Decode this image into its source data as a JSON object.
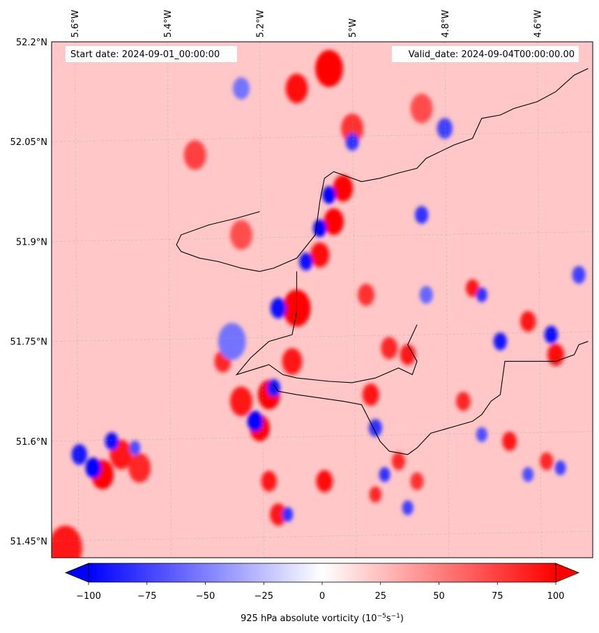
{
  "chart_data": {
    "type": "heatmap",
    "title": "",
    "map": {
      "lon_range": [
        -5.65,
        -4.48
      ],
      "lat_range": [
        51.425,
        52.2
      ],
      "lon_ticks": [
        {
          "value": -5.6,
          "label": "5.6°W"
        },
        {
          "value": -5.4,
          "label": "5.4°W"
        },
        {
          "value": -5.2,
          "label": "5.2°W"
        },
        {
          "value": -5.0,
          "label": "5°W"
        },
        {
          "value": -4.8,
          "label": "4.8°W"
        },
        {
          "value": -4.6,
          "label": "4.6°W"
        }
      ],
      "lat_ticks": [
        {
          "value": 52.2,
          "label": "52.2°N"
        },
        {
          "value": 52.05,
          "label": "52.05°N"
        },
        {
          "value": 51.9,
          "label": "51.9°N"
        },
        {
          "value": 51.75,
          "label": "51.75°N"
        },
        {
          "value": 51.6,
          "label": "51.6°N"
        },
        {
          "value": 51.45,
          "label": "51.45°N"
        }
      ],
      "gridlines": true,
      "coastlines": true
    },
    "info": {
      "start_date": "Start date: 2024-09-01_00:00:00",
      "valid_date": "Valid_date: 2024-09-04T00:00:00.00"
    },
    "colorbar": {
      "label_main": "925 hPa absolute vorticity (10",
      "exp1": "−5",
      "mid": "s",
      "exp2": "−1",
      "close": ")",
      "range": [
        -100,
        100
      ],
      "extend": "both",
      "ticks": [
        {
          "value": -100,
          "label": "−100"
        },
        {
          "value": -75,
          "label": "−75"
        },
        {
          "value": -50,
          "label": "−50"
        },
        {
          "value": -25,
          "label": "−25"
        },
        {
          "value": 0,
          "label": "0"
        },
        {
          "value": 25,
          "label": "25"
        },
        {
          "value": 50,
          "label": "50"
        },
        {
          "value": 75,
          "label": "75"
        },
        {
          "value": 100,
          "label": "100"
        }
      ],
      "colors": {
        "min": "#0000ff",
        "mid": "#ffffff",
        "max": "#ff0000"
      }
    },
    "features": {
      "background_vorticity": 22,
      "positive": [
        {
          "lon": -5.02,
          "lat": 51.98,
          "value": 100,
          "r": 0.018
        },
        {
          "lon": -5.04,
          "lat": 51.93,
          "value": 100,
          "r": 0.018
        },
        {
          "lon": -5.07,
          "lat": 51.88,
          "value": 95,
          "r": 0.017
        },
        {
          "lon": -5.12,
          "lat": 51.8,
          "value": 100,
          "r": 0.025
        },
        {
          "lon": -5.18,
          "lat": 51.67,
          "value": 100,
          "r": 0.02
        },
        {
          "lon": -5.2,
          "lat": 51.62,
          "value": 100,
          "r": 0.018
        },
        {
          "lon": -5.24,
          "lat": 51.66,
          "value": 90,
          "r": 0.02
        },
        {
          "lon": -5.13,
          "lat": 51.72,
          "value": 90,
          "r": 0.018
        },
        {
          "lon": -4.97,
          "lat": 51.82,
          "value": 80,
          "r": 0.015
        },
        {
          "lon": -4.92,
          "lat": 51.74,
          "value": 85,
          "r": 0.015
        },
        {
          "lon": -4.88,
          "lat": 51.73,
          "value": 90,
          "r": 0.014
        },
        {
          "lon": -4.96,
          "lat": 51.67,
          "value": 90,
          "r": 0.015
        },
        {
          "lon": -5.06,
          "lat": 51.54,
          "value": 95,
          "r": 0.015
        },
        {
          "lon": -5.16,
          "lat": 51.49,
          "value": 90,
          "r": 0.015
        },
        {
          "lon": -5.18,
          "lat": 51.54,
          "value": 90,
          "r": 0.014
        },
        {
          "lon": -5.54,
          "lat": 51.55,
          "value": 100,
          "r": 0.02
        },
        {
          "lon": -5.5,
          "lat": 51.58,
          "value": 90,
          "r": 0.02
        },
        {
          "lon": -5.46,
          "lat": 51.56,
          "value": 85,
          "r": 0.02
        },
        {
          "lon": -5.62,
          "lat": 51.44,
          "value": 90,
          "r": 0.03
        },
        {
          "lon": -5.05,
          "lat": 52.16,
          "value": 100,
          "r": 0.025
        },
        {
          "lon": -5.12,
          "lat": 52.13,
          "value": 95,
          "r": 0.02
        },
        {
          "lon": -5.0,
          "lat": 52.07,
          "value": 80,
          "r": 0.02
        },
        {
          "lon": -4.85,
          "lat": 52.1,
          "value": 70,
          "r": 0.02
        },
        {
          "lon": -4.74,
          "lat": 51.83,
          "value": 90,
          "r": 0.012
        },
        {
          "lon": -4.62,
          "lat": 51.78,
          "value": 90,
          "r": 0.014
        },
        {
          "lon": -4.56,
          "lat": 51.73,
          "value": 95,
          "r": 0.015
        },
        {
          "lon": -4.76,
          "lat": 51.66,
          "value": 85,
          "r": 0.013
        },
        {
          "lon": -4.66,
          "lat": 51.6,
          "value": 90,
          "r": 0.013
        },
        {
          "lon": -4.58,
          "lat": 51.57,
          "value": 85,
          "r": 0.012
        },
        {
          "lon": -4.9,
          "lat": 51.57,
          "value": 85,
          "r": 0.012
        },
        {
          "lon": -4.86,
          "lat": 51.54,
          "value": 80,
          "r": 0.012
        },
        {
          "lon": -4.95,
          "lat": 51.52,
          "value": 85,
          "r": 0.011
        },
        {
          "lon": -5.34,
          "lat": 52.03,
          "value": 75,
          "r": 0.02
        },
        {
          "lon": -5.24,
          "lat": 51.91,
          "value": 70,
          "r": 0.02
        },
        {
          "lon": -5.28,
          "lat": 51.72,
          "value": 85,
          "r": 0.015
        }
      ],
      "negative": [
        {
          "lon": -5.05,
          "lat": 51.97,
          "value": -100,
          "r": 0.012
        },
        {
          "lon": -5.07,
          "lat": 51.92,
          "value": -100,
          "r": 0.012
        },
        {
          "lon": -5.1,
          "lat": 51.87,
          "value": -95,
          "r": 0.012
        },
        {
          "lon": -5.16,
          "lat": 51.8,
          "value": -95,
          "r": 0.014
        },
        {
          "lon": -5.21,
          "lat": 51.63,
          "value": -100,
          "r": 0.014
        },
        {
          "lon": -5.17,
          "lat": 51.68,
          "value": -90,
          "r": 0.012
        },
        {
          "lon": -5.56,
          "lat": 51.56,
          "value": -100,
          "r": 0.014
        },
        {
          "lon": -5.59,
          "lat": 51.58,
          "value": -90,
          "r": 0.014
        },
        {
          "lon": -5.52,
          "lat": 51.6,
          "value": -95,
          "r": 0.012
        },
        {
          "lon": -5.47,
          "lat": 51.59,
          "value": -70,
          "r": 0.01
        },
        {
          "lon": -5.0,
          "lat": 52.05,
          "value": -80,
          "r": 0.012
        },
        {
          "lon": -4.8,
          "lat": 52.07,
          "value": -75,
          "r": 0.014
        },
        {
          "lon": -4.85,
          "lat": 51.94,
          "value": -80,
          "r": 0.012
        },
        {
          "lon": -4.68,
          "lat": 51.75,
          "value": -90,
          "r": 0.012
        },
        {
          "lon": -4.57,
          "lat": 51.76,
          "value": -95,
          "r": 0.012
        },
        {
          "lon": -4.72,
          "lat": 51.82,
          "value": -80,
          "r": 0.01
        },
        {
          "lon": -4.51,
          "lat": 51.85,
          "value": -75,
          "r": 0.012
        },
        {
          "lon": -4.95,
          "lat": 51.62,
          "value": -80,
          "r": 0.012
        },
        {
          "lon": -4.93,
          "lat": 51.55,
          "value": -80,
          "r": 0.01
        },
        {
          "lon": -4.88,
          "lat": 51.5,
          "value": -75,
          "r": 0.01
        },
        {
          "lon": -5.26,
          "lat": 51.75,
          "value": -55,
          "r": 0.025
        },
        {
          "lon": -5.14,
          "lat": 51.49,
          "value": -80,
          "r": 0.01
        },
        {
          "lon": -5.24,
          "lat": 52.13,
          "value": -55,
          "r": 0.015
        },
        {
          "lon": -4.72,
          "lat": 51.61,
          "value": -70,
          "r": 0.01
        },
        {
          "lon": -4.62,
          "lat": 51.55,
          "value": -70,
          "r": 0.01
        },
        {
          "lon": -4.55,
          "lat": 51.56,
          "value": -75,
          "r": 0.01
        },
        {
          "lon": -4.84,
          "lat": 51.82,
          "value": -60,
          "r": 0.012
        }
      ]
    },
    "coastline": [
      [
        [
          -5.2,
          51.855
        ],
        [
          -5.17,
          51.86
        ],
        [
          -5.12,
          51.875
        ],
        [
          -5.08,
          51.91
        ],
        [
          -5.07,
          51.96
        ],
        [
          -5.06,
          51.995
        ],
        [
          -5.04,
          52.005
        ],
        [
          -4.98,
          51.99
        ],
        [
          -4.94,
          51.995
        ],
        [
          -4.9,
          52.003
        ],
        [
          -4.86,
          52.01
        ],
        [
          -4.84,
          52.025
        ],
        [
          -4.78,
          52.045
        ],
        [
          -4.74,
          52.055
        ],
        [
          -4.72,
          52.085
        ],
        [
          -4.68,
          52.09
        ],
        [
          -4.65,
          52.1
        ],
        [
          -4.6,
          52.11
        ],
        [
          -4.56,
          52.125
        ],
        [
          -4.52,
          52.15
        ],
        [
          -4.49,
          52.16
        ]
      ],
      [
        [
          -5.2,
          51.855
        ],
        [
          -5.24,
          51.86
        ],
        [
          -5.29,
          51.87
        ],
        [
          -5.33,
          51.875
        ],
        [
          -5.37,
          51.885
        ],
        [
          -5.38,
          51.895
        ],
        [
          -5.37,
          51.91
        ],
        [
          -5.31,
          51.925
        ],
        [
          -5.25,
          51.935
        ],
        [
          -5.2,
          51.945
        ]
      ],
      [
        [
          -5.12,
          51.855
        ],
        [
          -5.12,
          51.795
        ],
        [
          -5.13,
          51.76
        ],
        [
          -5.18,
          51.75
        ],
        [
          -5.22,
          51.725
        ],
        [
          -5.25,
          51.7
        ],
        [
          -5.18,
          51.715
        ],
        [
          -5.15,
          51.7
        ],
        [
          -5.12,
          51.695
        ],
        [
          -5.05,
          51.69
        ],
        [
          -5.0,
          51.688
        ],
        [
          -4.95,
          51.695
        ],
        [
          -4.9,
          51.71
        ],
        [
          -4.87,
          51.7
        ],
        [
          -4.86,
          51.72
        ],
        [
          -4.88,
          51.745
        ],
        [
          -4.86,
          51.775
        ]
      ],
      [
        [
          -5.17,
          51.685
        ],
        [
          -5.16,
          51.675
        ],
        [
          -5.12,
          51.67
        ],
        [
          -5.07,
          51.665
        ],
        [
          -5.02,
          51.66
        ],
        [
          -4.98,
          51.655
        ],
        [
          -4.96,
          51.628
        ],
        [
          -4.94,
          51.6
        ],
        [
          -4.92,
          51.585
        ],
        [
          -4.88,
          51.58
        ],
        [
          -4.86,
          51.59
        ],
        [
          -4.83,
          51.612
        ],
        [
          -4.78,
          51.622
        ],
        [
          -4.74,
          51.63
        ],
        [
          -4.72,
          51.64
        ],
        [
          -4.7,
          51.66
        ],
        [
          -4.68,
          51.67
        ],
        [
          -4.67,
          51.72
        ],
        [
          -4.62,
          51.72
        ],
        [
          -4.56,
          51.72
        ],
        [
          -4.52,
          51.73
        ],
        [
          -4.51,
          51.745
        ],
        [
          -4.49,
          51.75
        ]
      ]
    ]
  }
}
